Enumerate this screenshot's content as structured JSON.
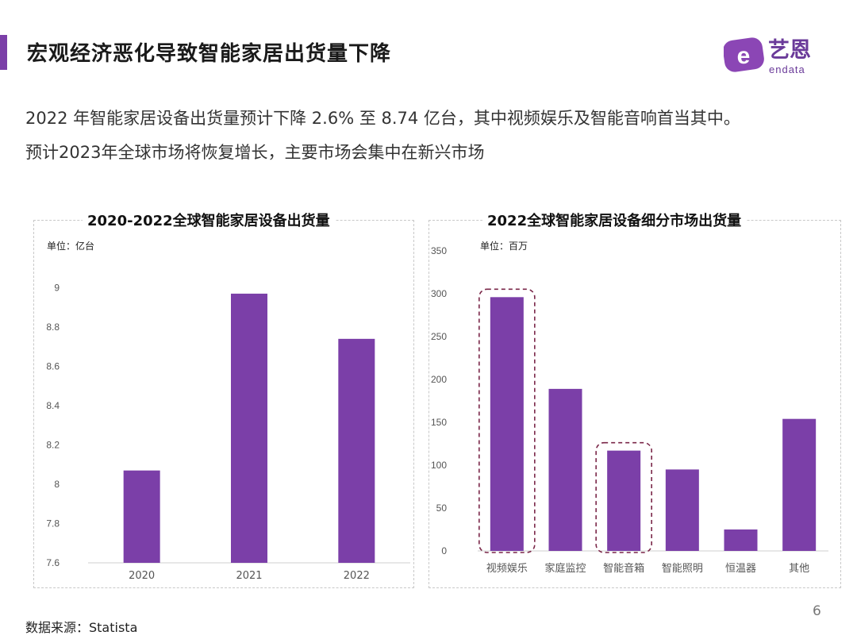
{
  "header": {
    "title": "宏观经济恶化导致智能家居出货量下降",
    "accent_color": "#7b3fa8",
    "logo_text_cn": "艺恩",
    "logo_text_en": "endata"
  },
  "summary": {
    "line1": "2022 年智能家居设备出货量预计下降 2.6% 至 8.74 亿台，其中视频娱乐及智能音响首当其中。",
    "line2": "预计2023年全球市场将恢复增长，主要市场会集中在新兴市场"
  },
  "source": "数据来源：Statista",
  "page_number": "6",
  "chart_data": [
    {
      "type": "bar",
      "title": "2020-2022全球智能家居设备出货量",
      "unit": "单位：亿台",
      "categories": [
        "2020",
        "2021",
        "2022"
      ],
      "values": [
        8.07,
        8.97,
        8.74
      ],
      "ylim": [
        7.6,
        9.2
      ],
      "yticks": [
        "7.6",
        "7.8",
        "8",
        "8.2",
        "8.4",
        "8.6",
        "8.8",
        "9"
      ],
      "bar_color": "#7b3fa8",
      "grid": false
    },
    {
      "type": "bar",
      "title": "2022全球智能家居设备细分市场出货量",
      "unit": "单位：百万",
      "categories": [
        "视频娱乐",
        "家庭监控",
        "智能音箱",
        "智能照明",
        "恒温器",
        "其他"
      ],
      "values": [
        296,
        189,
        117,
        95,
        25,
        154
      ],
      "ylim": [
        0,
        350
      ],
      "yticks": [
        "0",
        "50",
        "100",
        "150",
        "200",
        "250",
        "300",
        "350"
      ],
      "highlighted": [
        "视频娱乐",
        "智能音箱"
      ],
      "highlight_color": "#7a2648",
      "bar_color": "#7b3fa8",
      "grid": false
    }
  ]
}
